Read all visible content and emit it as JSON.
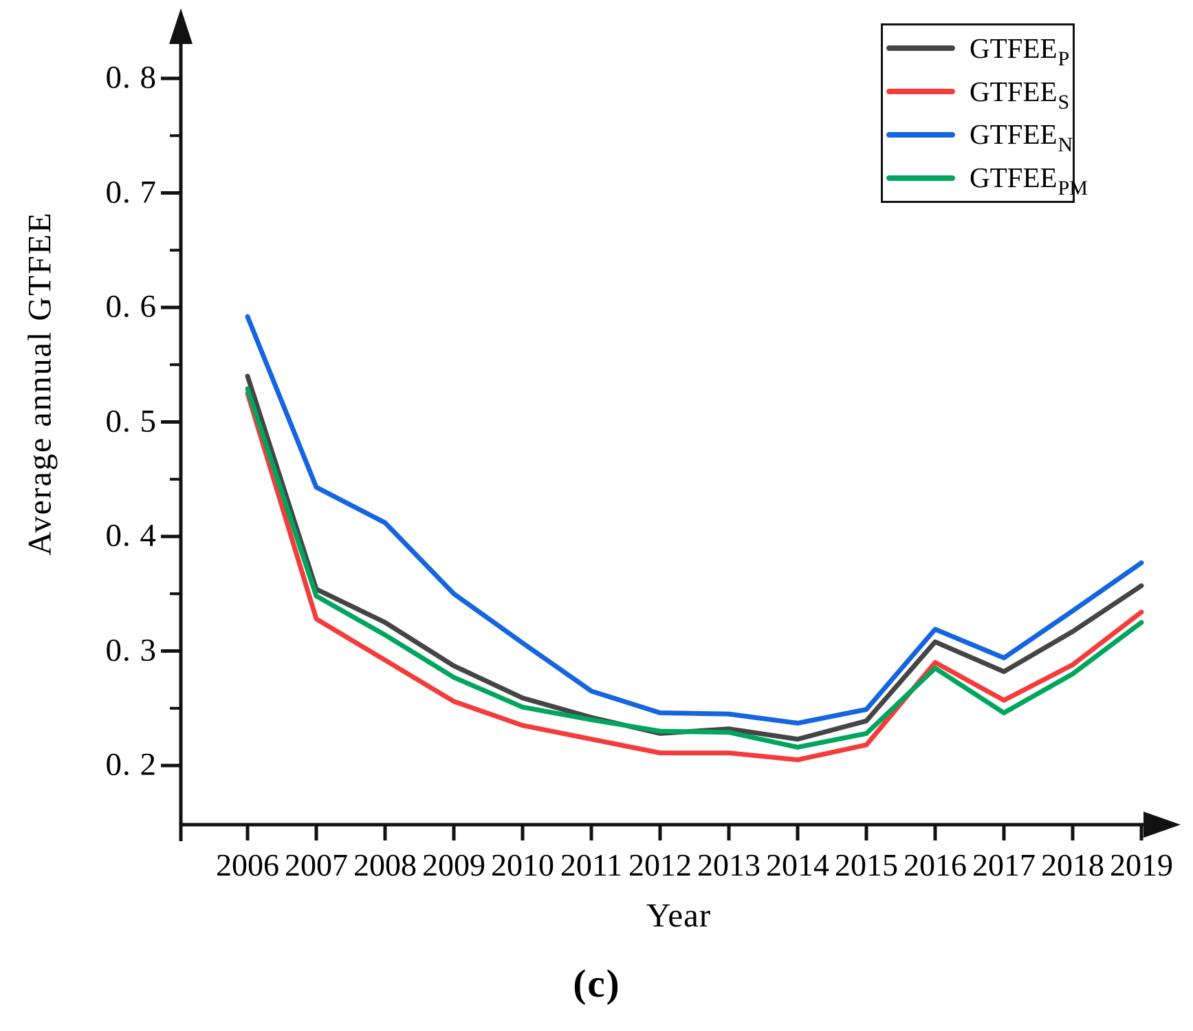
{
  "figure": {
    "caption": "(c)"
  },
  "chart_data": {
    "type": "line",
    "title": "",
    "xlabel": "Year",
    "ylabel": "Average annual GTFEE",
    "grid": false,
    "legend_position": "top-right",
    "axis_color": "#111111",
    "x_categories": [
      "2006",
      "2007",
      "2008",
      "2009",
      "2010",
      "2011",
      "2012",
      "2013",
      "2014",
      "2015",
      "2016",
      "2017",
      "2018",
      "2019"
    ],
    "yticks": {
      "labels": [
        "0. 8",
        "0. 7",
        "0. 6",
        "0. 5",
        "0. 4",
        "0. 3",
        "0. 2"
      ],
      "values": [
        0.8,
        0.7,
        0.6,
        0.5,
        0.4,
        0.3,
        0.2
      ]
    },
    "yticks_minor": [
      0.75,
      0.65,
      0.55,
      0.45,
      0.35,
      0.25
    ],
    "ylim_drawn": [
      0.15,
      0.84
    ],
    "series": [
      {
        "name": "GTFEE_P",
        "label_base": "GTFEE",
        "label_sub": "P",
        "color": "#454545",
        "values": [
          0.54,
          0.354,
          0.325,
          0.287,
          0.259,
          0.242,
          0.228,
          0.232,
          0.223,
          0.239,
          0.308,
          0.282,
          0.317,
          0.357
        ]
      },
      {
        "name": "GTFEE_S",
        "label_base": "GTFEE",
        "label_sub": "S",
        "color": "#f43c3c",
        "values": [
          0.525,
          0.328,
          0.292,
          0.256,
          0.235,
          0.223,
          0.211,
          0.211,
          0.205,
          0.218,
          0.29,
          0.257,
          0.288,
          0.334
        ]
      },
      {
        "name": "GTFEE_N",
        "label_base": "GTFEE",
        "label_sub": "N",
        "color": "#1565e0",
        "values": [
          0.592,
          0.443,
          0.412,
          0.35,
          0.307,
          0.265,
          0.246,
          0.245,
          0.237,
          0.249,
          0.319,
          0.294,
          0.335,
          0.377
        ]
      },
      {
        "name": "GTFEE_PM",
        "label_base": "GTFEE",
        "label_sub": "PM",
        "color": "#00a65e",
        "values": [
          0.529,
          0.348,
          0.314,
          0.277,
          0.251,
          0.24,
          0.23,
          0.229,
          0.216,
          0.228,
          0.285,
          0.246,
          0.28,
          0.325
        ]
      }
    ]
  }
}
